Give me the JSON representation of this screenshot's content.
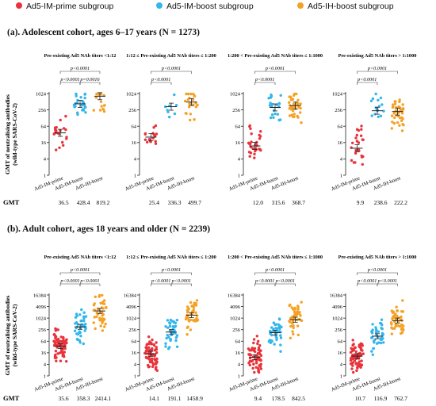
{
  "legend": [
    {
      "label": "Ad5-IM-prime subgroup",
      "color": "#e8333b"
    },
    {
      "label": "Ad5-IM-boost subgroup",
      "color": "#33b6ec"
    },
    {
      "label": "Ad5-IH-boost subgroup",
      "color": "#f5a124"
    }
  ],
  "sections": [
    {
      "title": "(a). Adolescent cohort, ages 6–17 years (N = 1273)"
    },
    {
      "title": "(b). Adult cohort, ages 18 years and older (N = 2239)"
    }
  ],
  "ylabel_line1": "GMT of neutralising antibodies",
  "ylabel_line2": "(wild-type SARS-CoV-2)",
  "gmt_label": "GMT",
  "chart_data": [
    {
      "type": "scatter",
      "title": "Pre-existing Ad5 NAb titers <1:12",
      "scale": "log2",
      "yticks": [
        "1",
        "4",
        "16",
        "64",
        "256",
        "1024"
      ],
      "ylim": [
        1,
        1024
      ],
      "categories": [
        "Ad5-IM-prime",
        "Ad5-IM-boost",
        "Ad5-IH-boost"
      ],
      "gmt": [
        "36.5",
        "428.4",
        "819.2"
      ],
      "gmt_values": [
        36.5,
        428.4,
        819.2
      ],
      "comparisons": [
        {
          "from": 0,
          "to": 1,
          "label": "p<0.0001"
        },
        {
          "from": 1,
          "to": 2,
          "label": "p=0.0016"
        },
        {
          "from": 0,
          "to": 2,
          "label": "p<0.0001"
        }
      ]
    },
    {
      "type": "scatter",
      "title": "1:12 ≤  Pre-existing Ad5 NAb titers ≤ 1:200",
      "scale": "log2",
      "yticks": [
        "1",
        "4",
        "16",
        "64",
        "256",
        "1024"
      ],
      "ylim": [
        1,
        1024
      ],
      "categories": [
        "Ad5-IM-prime",
        "Ad5-IM-boost",
        "Ad5-IH-boost"
      ],
      "gmt": [
        "25.4",
        "336.3",
        "499.7"
      ],
      "gmt_values": [
        25.4,
        336.3,
        499.7
      ],
      "comparisons": [
        {
          "from": 0,
          "to": 1,
          "label": "p<0.0001"
        },
        {
          "from": 0,
          "to": 2,
          "label": "p<0.0001"
        }
      ]
    },
    {
      "type": "scatter",
      "title": "1:200 < Pre-existing Ad5 NAb titers ≤ 1:1000",
      "scale": "log2",
      "yticks": [
        "1",
        "4",
        "16",
        "64",
        "256",
        "1024"
      ],
      "ylim": [
        1,
        1024
      ],
      "categories": [
        "Ad5-IM-prime",
        "Ad5-IM-boost",
        "Ad5-IH-boost"
      ],
      "gmt": [
        "12.0",
        "315.6",
        "368.7"
      ],
      "gmt_values": [
        12.0,
        315.6,
        368.7
      ],
      "comparisons": [
        {
          "from": 0,
          "to": 1,
          "label": "p<0.0001"
        },
        {
          "from": 0,
          "to": 2,
          "label": "p<0.0001"
        }
      ]
    },
    {
      "type": "scatter",
      "title": "Pre-existing Ad5 NAb titers > 1:1000",
      "scale": "log2",
      "yticks": [
        "1",
        "4",
        "16",
        "64",
        "256",
        "1024"
      ],
      "ylim": [
        1,
        1024
      ],
      "categories": [
        "Ad5-IM-prime",
        "Ad5-IM-boost",
        "Ad5-IH-boost"
      ],
      "gmt": [
        "9.9",
        "238.6",
        "222.2"
      ],
      "gmt_values": [
        9.9,
        238.6,
        222.2
      ],
      "comparisons": [
        {
          "from": 0,
          "to": 1,
          "label": "p<0.0001"
        },
        {
          "from": 0,
          "to": 2,
          "label": "p<0.0001"
        }
      ]
    },
    {
      "type": "scatter",
      "title": "Pre-existing Ad5 NAb titers <1:12",
      "scale": "log2",
      "yticks": [
        "1",
        "4",
        "16",
        "64",
        "256",
        "1024",
        "4096",
        "16384"
      ],
      "ylim": [
        1,
        16384
      ],
      "categories": [
        "Ad5-IM-prime",
        "Ad5-IM-boost",
        "Ad5-IH-boost"
      ],
      "gmt": [
        "35.6",
        "358.3",
        "2414.1"
      ],
      "gmt_values": [
        35.6,
        358.3,
        2414.1
      ],
      "comparisons": [
        {
          "from": 0,
          "to": 1,
          "label": "p<0.0001"
        },
        {
          "from": 1,
          "to": 2,
          "label": "p<0.0001"
        },
        {
          "from": 0,
          "to": 2,
          "label": "p<0.0001"
        }
      ]
    },
    {
      "type": "scatter",
      "title": "1:12 ≤  Pre-existing Ad5 NAb titers ≤ 1:200",
      "scale": "log2",
      "yticks": [
        "1",
        "4",
        "16",
        "64",
        "256",
        "1024",
        "4096",
        "16384"
      ],
      "ylim": [
        1,
        16384
      ],
      "categories": [
        "Ad5-IM-prime",
        "Ad5-IM-boost",
        "Ad5-IH-boost"
      ],
      "gmt": [
        "14.1",
        "191.1",
        "1458.9"
      ],
      "gmt_values": [
        14.1,
        191.1,
        1458.9
      ],
      "comparisons": [
        {
          "from": 0,
          "to": 1,
          "label": "p<0.0001"
        },
        {
          "from": 1,
          "to": 2,
          "label": "p<0.0001"
        },
        {
          "from": 0,
          "to": 2,
          "label": "p<0.0001"
        }
      ]
    },
    {
      "type": "scatter",
      "title": "1:200 < Pre-existing Ad5 NAb titers ≤ 1:1000",
      "scale": "log2",
      "yticks": [
        "1",
        "4",
        "16",
        "64",
        "256",
        "1024",
        "4096",
        "16384"
      ],
      "ylim": [
        1,
        16384
      ],
      "categories": [
        "Ad5-IM-prime",
        "Ad5-IM-boost",
        "Ad5-IH-boost"
      ],
      "gmt": [
        "9.4",
        "178.5",
        "842.5"
      ],
      "gmt_values": [
        9.4,
        178.5,
        842.5
      ],
      "comparisons": [
        {
          "from": 0,
          "to": 1,
          "label": "p<0.0001"
        },
        {
          "from": 1,
          "to": 2,
          "label": "p<0.0001"
        },
        {
          "from": 0,
          "to": 2,
          "label": "p<0.0001"
        }
      ]
    },
    {
      "type": "scatter",
      "title": "Pre-existing Ad5 NAb titers > 1:1000",
      "scale": "log2",
      "yticks": [
        "1",
        "4",
        "16",
        "64",
        "256",
        "1024",
        "4096",
        "16384"
      ],
      "ylim": [
        1,
        16384
      ],
      "categories": [
        "Ad5-IM-prime",
        "Ad5-IM-boost",
        "Ad5-IH-boost"
      ],
      "gmt": [
        "10.7",
        "116.9",
        "762.7"
      ],
      "gmt_values": [
        10.7,
        116.9,
        762.7
      ],
      "comparisons": [
        {
          "from": 0,
          "to": 1,
          "label": "p<0.0001"
        },
        {
          "from": 1,
          "to": 2,
          "label": "p<0.0001"
        },
        {
          "from": 0,
          "to": 2,
          "label": "p<0.0001"
        }
      ]
    }
  ]
}
